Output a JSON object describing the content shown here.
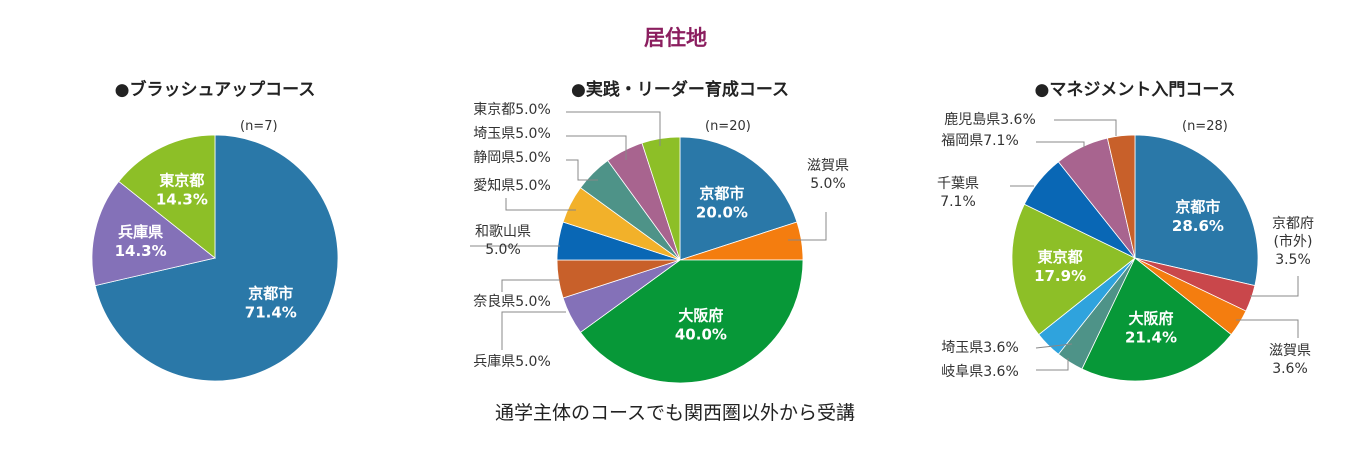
{
  "title": "居住地",
  "footer_note": "通学主体のコースでも関西圏以外から受講",
  "chart_data": [
    {
      "type": "pie",
      "title": "●ブラッシュアップコース",
      "n_label": "(n=7)",
      "slices": [
        {
          "label": "京都市",
          "value": 71.4,
          "value_label": "71.4%",
          "color": "#2a78a8"
        },
        {
          "label": "兵庫県",
          "value": 14.3,
          "value_label": "14.3%",
          "color": "#8471b8"
        },
        {
          "label": "東京都",
          "value": 14.3,
          "value_label": "14.3%",
          "color": "#8dbf27"
        }
      ]
    },
    {
      "type": "pie",
      "title": "●実践・リーダー育成コース",
      "n_label": "(n=20)",
      "slices": [
        {
          "label": "京都市",
          "value": 20.0,
          "value_label": "20.0%",
          "color": "#2a78a8"
        },
        {
          "label": "滋賀県",
          "value": 5.0,
          "value_label": "5.0%",
          "color": "#f47d0f"
        },
        {
          "label": "大阪府",
          "value": 40.0,
          "value_label": "40.0%",
          "color": "#079838"
        },
        {
          "label": "兵庫県",
          "value": 5.0,
          "value_label": "5.0%",
          "color": "#8471b8"
        },
        {
          "label": "奈良県",
          "value": 5.0,
          "value_label": "5.0%",
          "color": "#c8602a"
        },
        {
          "label": "和歌山県",
          "value": 5.0,
          "value_label": "5.0%",
          "color": "#0967b5"
        },
        {
          "label": "愛知県",
          "value": 5.0,
          "value_label": "5.0%",
          "color": "#f2b12a"
        },
        {
          "label": "静岡県",
          "value": 5.0,
          "value_label": "5.0%",
          "color": "#4e9388"
        },
        {
          "label": "埼玉県",
          "value": 5.0,
          "value_label": "5.0%",
          "color": "#a8648f"
        },
        {
          "label": "東京都",
          "value": 5.0,
          "value_label": "5.0%",
          "color": "#8dbf27"
        }
      ]
    },
    {
      "type": "pie",
      "title": "●マネジメント入門コース",
      "n_label": "(n=28)",
      "slices": [
        {
          "label": "京都市",
          "value": 28.6,
          "value_label": "28.6%",
          "color": "#2a78a8"
        },
        {
          "label": "京都府(市外)",
          "value": 3.5,
          "value_label": "3.5%",
          "color": "#c9474b"
        },
        {
          "label": "滋賀県",
          "value": 3.6,
          "value_label": "3.6%",
          "color": "#f47d0f"
        },
        {
          "label": "大阪府",
          "value": 21.4,
          "value_label": "21.4%",
          "color": "#079838"
        },
        {
          "label": "岐阜県",
          "value": 3.6,
          "value_label": "3.6%",
          "color": "#4e9388"
        },
        {
          "label": "埼玉県",
          "value": 3.6,
          "value_label": "3.6%",
          "color": "#2fa3dd"
        },
        {
          "label": "東京都",
          "value": 17.9,
          "value_label": "17.9%",
          "color": "#8dbf27"
        },
        {
          "label": "千葉県",
          "value": 7.1,
          "value_label": "7.1%",
          "color": "#0967b5"
        },
        {
          "label": "福岡県",
          "value": 7.1,
          "value_label": "7.1%",
          "color": "#a8648f"
        },
        {
          "label": "鹿児島県",
          "value": 3.6,
          "value_label": "3.6%",
          "color": "#c8602a"
        }
      ]
    }
  ]
}
